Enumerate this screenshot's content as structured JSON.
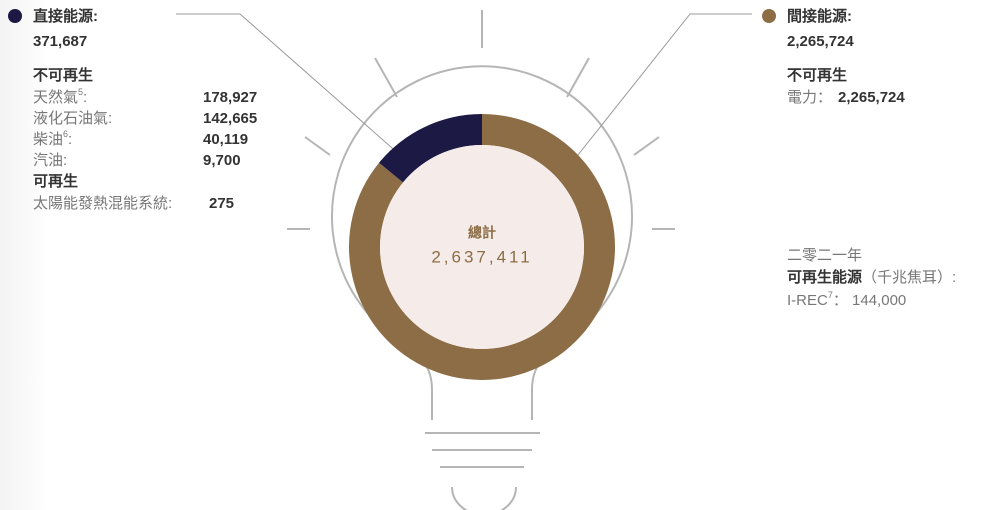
{
  "chart_data": {
    "type": "donut",
    "categories": [
      "直接能源:",
      "間接能源:"
    ],
    "values": [
      371687,
      2265724
    ],
    "value_labels": [
      "371,687",
      "2,265,724"
    ],
    "colors": [
      "#1c1a45",
      "#8c6d45"
    ],
    "total_label": "總計",
    "total": "2,637,411",
    "breakdown": [
      [
        {
          "heading": "不可再生",
          "items": [
            {
              "name": "天然氣",
              "note": "5",
              "sep": ":",
              "value": "178,927"
            },
            {
              "name": "液化石油氣:",
              "value": "142,665"
            },
            {
              "name": "柴油",
              "note": "6",
              "sep": ":",
              "value": "40,119"
            },
            {
              "name": "汽油:",
              "value": "9,700"
            }
          ]
        },
        {
          "heading": "可再生",
          "items": [
            {
              "name": "太陽能發熱混能系統:",
              "value": "275"
            }
          ]
        }
      ],
      [
        {
          "heading": "不可再生",
          "items": [
            {
              "name": "電力：",
              "value": "2,265,724"
            }
          ]
        }
      ]
    ],
    "renewable": {
      "year": "二零二一年",
      "title": "可再生能源",
      "unit": "（千兆焦耳）:",
      "name": "I-REC",
      "note": "7",
      "value": "： 144,000"
    }
  }
}
